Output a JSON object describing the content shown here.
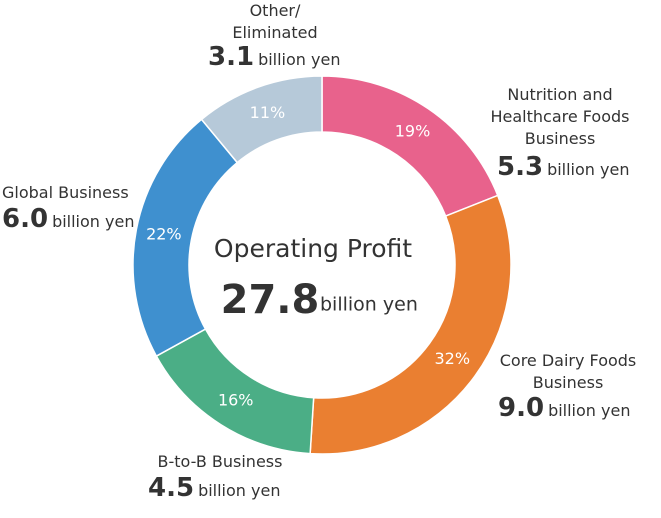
{
  "chart_data": {
    "type": "pie",
    "center_label": "Operating Profit",
    "total": 27.8,
    "unit": "billion yen",
    "categories": [
      "Nutrition and\nHealthcare Foods\nBusiness",
      "Core Dairy Foods\nBusiness",
      "B-to-B Business",
      "Global Business",
      "Other/\nEliminated"
    ],
    "values": [
      19,
      32,
      16,
      22,
      11
    ],
    "value_labels": [
      "19%",
      "32%",
      "16%",
      "22%",
      "11%"
    ],
    "colors": [
      "#e8628c",
      "#ea7f31",
      "#4bae86",
      "#3f90cf",
      "#b6c9d9"
    ],
    "amounts": [
      5.3,
      9.0,
      4.5,
      6.0,
      3.1
    ],
    "amount_labels": [
      "5.3",
      "9.0",
      "4.5",
      "6.0",
      "3.1"
    ]
  }
}
